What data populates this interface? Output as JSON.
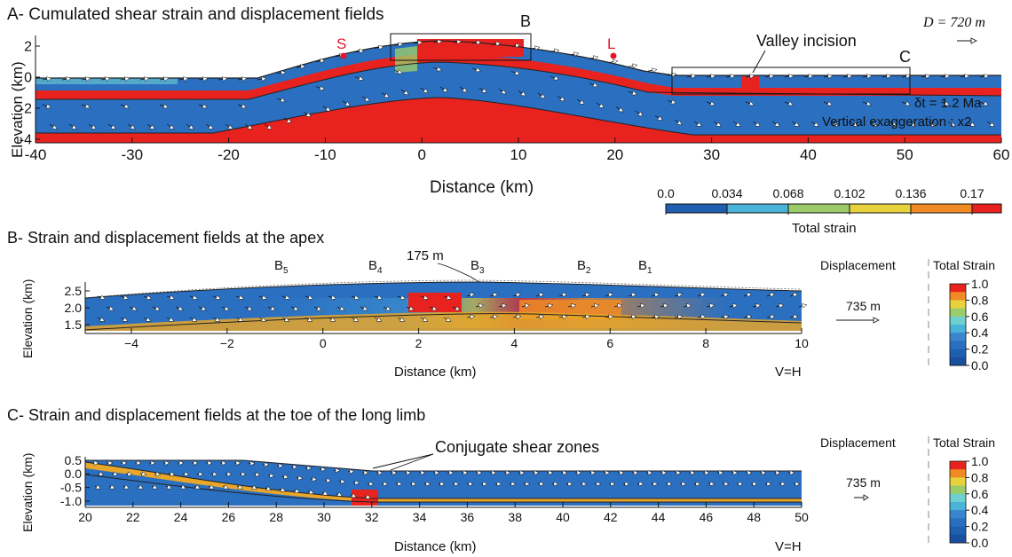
{
  "panelA": {
    "title": "A- Cumulated shear strain and displacement fields",
    "box_labels": {
      "b": "B",
      "c": "C"
    },
    "point_labels": {
      "s": "S",
      "l": "L"
    },
    "valley_label": "Valley incision",
    "disp_label": "D = 720 m",
    "dt_label": "δt = 1.2 Ma",
    "vexag_label": "Vertical exaggeration : x2",
    "ylabel": "Elevation (km)",
    "xlabel": "Distance (km)",
    "yticks": [
      "2",
      "0",
      "-2",
      "-4"
    ],
    "xticks": [
      "-40",
      "-30",
      "-20",
      "-10",
      "0",
      "10",
      "20",
      "30",
      "40",
      "50",
      "60"
    ],
    "colorbar_ticks": [
      "0.0",
      "0.034",
      "0.068",
      "0.102",
      "0.136",
      "0.17"
    ],
    "colorbar_label": "Total strain"
  },
  "panelB": {
    "title": "B- Strain and displacement fields at the apex",
    "b_labels": [
      "B5",
      "B4",
      "B3",
      "B2",
      "B1"
    ],
    "uplift_label": "175 m",
    "ylabel": "Elevation (km)",
    "xlabel": "Distance (km)",
    "yticks": [
      "2.5",
      "2.0",
      "1.5"
    ],
    "xticks": [
      "−4",
      "−2",
      "0",
      "2",
      "4",
      "6",
      "8",
      "10"
    ],
    "vh_label": "V=H",
    "disp_title": "Displacement",
    "disp_value": "735 m",
    "strain_title": "Total Strain",
    "strain_ticks": [
      "1.0",
      "0.8",
      "0.6",
      "0.4",
      "0.2",
      "0.0"
    ]
  },
  "panelC": {
    "title": "C- Strain and displacement fields at the toe of the long limb",
    "conj_label": "Conjugate shear zones",
    "ylabel": "Elevation (km)",
    "xlabel": "Distance (km)",
    "yticks": [
      "0.5",
      "0.0",
      "-0.5",
      "-1.0"
    ],
    "xticks": [
      "20",
      "22",
      "24",
      "26",
      "28",
      "30",
      "32",
      "34",
      "36",
      "38",
      "40",
      "42",
      "44",
      "46",
      "48",
      "50"
    ],
    "vh_label": "V=H",
    "disp_title": "Displacement",
    "disp_value": "735 m",
    "strain_title": "Total Strain",
    "strain_ticks": [
      "1.0",
      "0.8",
      "0.6",
      "0.4",
      "0.2",
      "0.0"
    ]
  },
  "colors": {
    "blue": "#2a6fc0",
    "lightblue": "#49b3d8",
    "cyan": "#6fd0d0",
    "green": "#9ccc6a",
    "yellow": "#e8d23c",
    "orange": "#f08a24",
    "red": "#e8231f",
    "accent_red": "#e8152a"
  }
}
